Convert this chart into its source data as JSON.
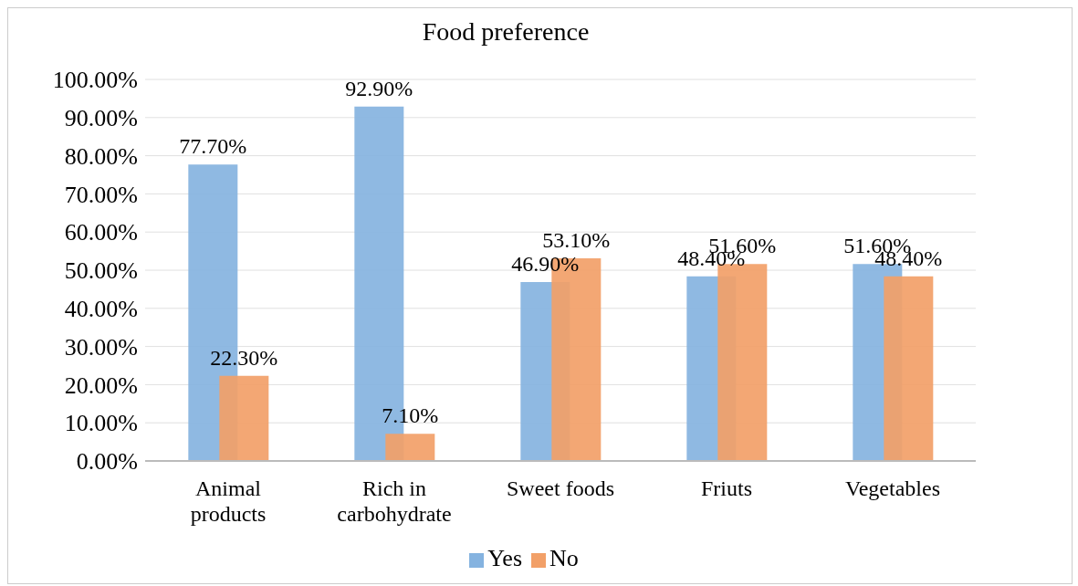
{
  "chart_data": {
    "type": "bar",
    "title": "Food preference",
    "categories": [
      "Animal products",
      "Rich in carbohydrate",
      "Sweet foods",
      "Friuts",
      "Vegetables"
    ],
    "series": [
      {
        "name": "Yes",
        "color": "#85b3e0",
        "values": [
          77.7,
          92.9,
          46.9,
          48.4,
          51.6
        ],
        "value_labels": [
          "77.70%",
          "92.90%",
          "46.90%",
          "48.40%",
          "51.60%"
        ]
      },
      {
        "name": "No",
        "color": "#f2a068",
        "values": [
          22.3,
          7.1,
          53.1,
          51.6,
          48.4
        ],
        "value_labels": [
          "22.30%",
          "7.10%",
          "53.10%",
          "51.60%",
          "48.40%"
        ]
      }
    ],
    "ylim": [
      0,
      100
    ],
    "yticks": [
      {
        "value": 0,
        "label": "0.00%"
      },
      {
        "value": 10,
        "label": "10.00%"
      },
      {
        "value": 20,
        "label": "20.00%"
      },
      {
        "value": 30,
        "label": "30.00%"
      },
      {
        "value": 40,
        "label": "40.00%"
      },
      {
        "value": 50,
        "label": "50.00%"
      },
      {
        "value": 60,
        "label": "60.00%"
      },
      {
        "value": 70,
        "label": "70.00%"
      },
      {
        "value": 80,
        "label": "80.00%"
      },
      {
        "value": 90,
        "label": "90.00%"
      },
      {
        "value": 100,
        "label": "100.00%"
      }
    ],
    "grid": "y",
    "legend": "bottom"
  }
}
